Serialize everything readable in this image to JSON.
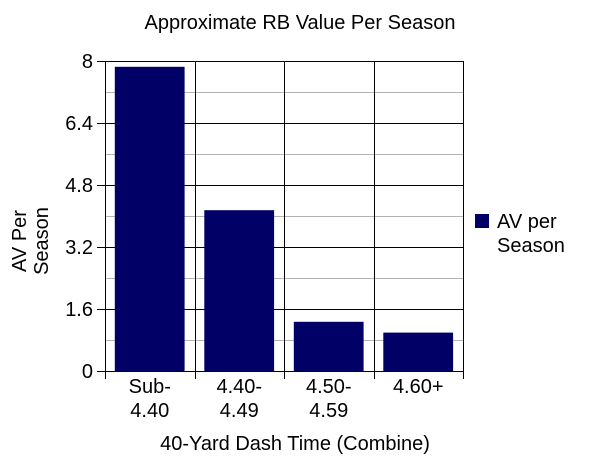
{
  "chart_data": {
    "type": "bar",
    "title": "Approximate RB Value Per Season",
    "xlabel": "40-Yard Dash Time (Combine)",
    "ylabel_lines": [
      "AV Per",
      "Season"
    ],
    "categories": [
      [
        "Sub-",
        "4.40"
      ],
      [
        "4.40-",
        "4.49"
      ],
      [
        "4.50-",
        "4.59"
      ],
      [
        "4.60+"
      ]
    ],
    "series": [
      {
        "name": "AV per Season",
        "name_lines": [
          "AV per",
          "Season"
        ],
        "values": [
          7.85,
          4.15,
          1.27,
          0.99
        ],
        "color": "#000066"
      }
    ],
    "ylim": [
      0,
      8
    ],
    "yticks": [
      "0",
      "1.6",
      "3.2",
      "4.8",
      "6.4",
      "8"
    ],
    "ytick_values": [
      0,
      1.6,
      3.2,
      4.8,
      6.4,
      8
    ],
    "minor_grid_values": [
      0.8,
      2.4,
      4.0,
      5.6,
      7.2
    ],
    "grid": true,
    "legend": "right",
    "colors": {
      "major_grid": "#000000",
      "minor_grid": "#b3b3b3",
      "bar": "#000066"
    }
  }
}
